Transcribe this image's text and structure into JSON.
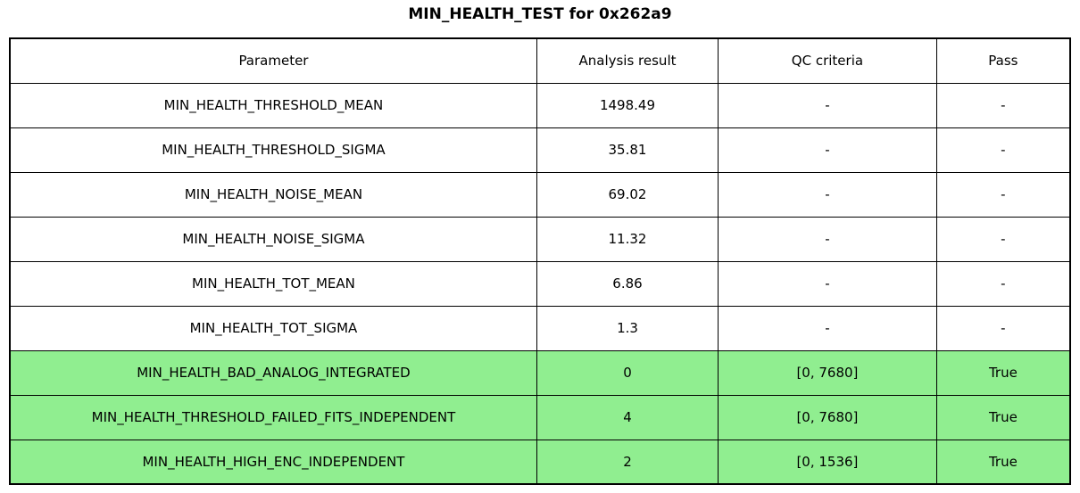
{
  "colors": {
    "pass_row_bg": "#90EE90",
    "row_bg": "#FFFFFF",
    "border": "#000000",
    "text": "#000000",
    "page_bg": "#FFFFFF"
  },
  "chart_data": {
    "type": "table",
    "title": "MIN_HEALTH_TEST for 0x262a9",
    "columns": [
      "Parameter",
      "Analysis result",
      "QC criteria",
      "Pass"
    ],
    "rows": [
      [
        "MIN_HEALTH_THRESHOLD_MEAN",
        "1498.49",
        "-",
        "-"
      ],
      [
        "MIN_HEALTH_THRESHOLD_SIGMA",
        "35.81",
        "-",
        "-"
      ],
      [
        "MIN_HEALTH_NOISE_MEAN",
        "69.02",
        "-",
        "-"
      ],
      [
        "MIN_HEALTH_NOISE_SIGMA",
        "11.32",
        "-",
        "-"
      ],
      [
        "MIN_HEALTH_TOT_MEAN",
        "6.86",
        "-",
        "-"
      ],
      [
        "MIN_HEALTH_TOT_SIGMA",
        "1.3",
        "-",
        "-"
      ],
      [
        "MIN_HEALTH_BAD_ANALOG_INTEGRATED",
        "0",
        "[0, 7680]",
        "True"
      ],
      [
        "MIN_HEALTH_THRESHOLD_FAILED_FITS_INDEPENDENT",
        "4",
        "[0, 7680]",
        "True"
      ],
      [
        "MIN_HEALTH_HIGH_ENC_INDEPENDENT",
        "2",
        "[0, 1536]",
        "True"
      ]
    ],
    "highlighted_rows": [
      6,
      7,
      8
    ],
    "highlight_color": "#90EE90",
    "legend_position": "none",
    "grid": "full-borders"
  }
}
